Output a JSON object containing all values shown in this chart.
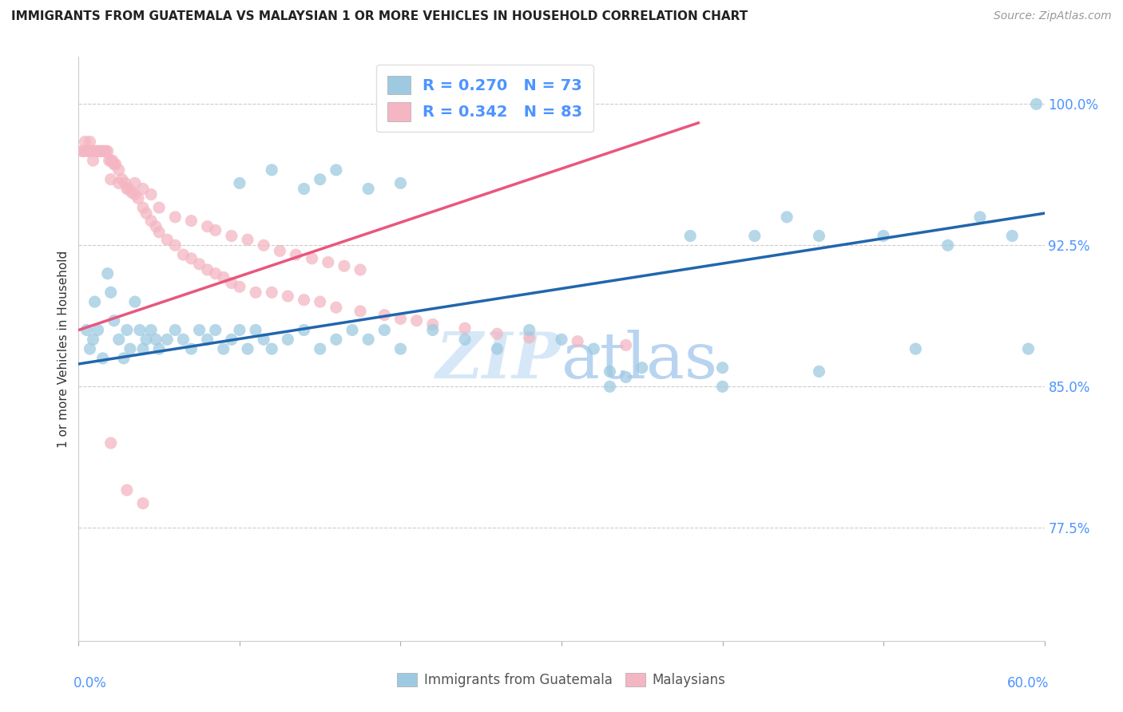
{
  "title": "IMMIGRANTS FROM GUATEMALA VS MALAYSIAN 1 OR MORE VEHICLES IN HOUSEHOLD CORRELATION CHART",
  "source": "Source: ZipAtlas.com",
  "ylabel_label": "1 or more Vehicles in Household",
  "R_blue": 0.27,
  "N_blue": 73,
  "R_pink": 0.342,
  "N_pink": 83,
  "blue_color": "#9ecae1",
  "pink_color": "#f4b6c2",
  "line_blue": "#2166ac",
  "line_pink": "#e8577c",
  "axis_tick_color": "#4d94ff",
  "watermark_color": "#d6e8f7",
  "xmin": 0.0,
  "xmax": 0.6,
  "ymin": 0.715,
  "ymax": 1.025,
  "blue_line_x0": 0.0,
  "blue_line_x1": 0.6,
  "blue_line_y0": 0.862,
  "blue_line_y1": 0.942,
  "pink_line_x0": 0.0,
  "pink_line_x1": 0.385,
  "pink_line_y0": 0.88,
  "pink_line_y1": 0.99,
  "blue_x": [
    0.005,
    0.007,
    0.009,
    0.01,
    0.012,
    0.015,
    0.018,
    0.02,
    0.022,
    0.025,
    0.028,
    0.03,
    0.032,
    0.035,
    0.038,
    0.04,
    0.042,
    0.045,
    0.048,
    0.05,
    0.055,
    0.06,
    0.065,
    0.07,
    0.075,
    0.08,
    0.085,
    0.09,
    0.095,
    0.1,
    0.105,
    0.11,
    0.115,
    0.12,
    0.13,
    0.14,
    0.15,
    0.16,
    0.17,
    0.18,
    0.19,
    0.2,
    0.22,
    0.24,
    0.26,
    0.28,
    0.3,
    0.32,
    0.33,
    0.33,
    0.34,
    0.35,
    0.38,
    0.4,
    0.4,
    0.42,
    0.44,
    0.46,
    0.46,
    0.5,
    0.52,
    0.54,
    0.56,
    0.58,
    0.59,
    0.595,
    0.1,
    0.12,
    0.14,
    0.15,
    0.16,
    0.18,
    0.2
  ],
  "blue_y": [
    0.88,
    0.87,
    0.875,
    0.895,
    0.88,
    0.865,
    0.91,
    0.9,
    0.885,
    0.875,
    0.865,
    0.88,
    0.87,
    0.895,
    0.88,
    0.87,
    0.875,
    0.88,
    0.875,
    0.87,
    0.875,
    0.88,
    0.875,
    0.87,
    0.88,
    0.875,
    0.88,
    0.87,
    0.875,
    0.88,
    0.87,
    0.88,
    0.875,
    0.87,
    0.875,
    0.88,
    0.87,
    0.875,
    0.88,
    0.875,
    0.88,
    0.87,
    0.88,
    0.875,
    0.87,
    0.88,
    0.875,
    0.87,
    0.85,
    0.858,
    0.855,
    0.86,
    0.93,
    0.85,
    0.86,
    0.93,
    0.94,
    0.93,
    0.858,
    0.93,
    0.87,
    0.925,
    0.94,
    0.93,
    0.87,
    1.0,
    0.958,
    0.965,
    0.955,
    0.96,
    0.965,
    0.955,
    0.958
  ],
  "pink_x": [
    0.002,
    0.003,
    0.004,
    0.005,
    0.006,
    0.007,
    0.008,
    0.009,
    0.01,
    0.011,
    0.012,
    0.013,
    0.014,
    0.015,
    0.016,
    0.017,
    0.018,
    0.019,
    0.02,
    0.021,
    0.022,
    0.023,
    0.025,
    0.027,
    0.029,
    0.031,
    0.033,
    0.035,
    0.037,
    0.04,
    0.042,
    0.045,
    0.048,
    0.05,
    0.055,
    0.06,
    0.065,
    0.07,
    0.075,
    0.08,
    0.085,
    0.09,
    0.095,
    0.1,
    0.11,
    0.12,
    0.13,
    0.14,
    0.15,
    0.16,
    0.175,
    0.19,
    0.2,
    0.21,
    0.22,
    0.24,
    0.26,
    0.28,
    0.31,
    0.34,
    0.02,
    0.025,
    0.03,
    0.035,
    0.04,
    0.045,
    0.05,
    0.06,
    0.07,
    0.08,
    0.085,
    0.095,
    0.105,
    0.115,
    0.125,
    0.135,
    0.145,
    0.155,
    0.165,
    0.175,
    0.02,
    0.03,
    0.04
  ],
  "pink_y": [
    0.975,
    0.975,
    0.98,
    0.975,
    0.975,
    0.98,
    0.975,
    0.97,
    0.975,
    0.975,
    0.975,
    0.975,
    0.975,
    0.975,
    0.975,
    0.975,
    0.975,
    0.97,
    0.97,
    0.97,
    0.968,
    0.968,
    0.965,
    0.96,
    0.958,
    0.955,
    0.953,
    0.952,
    0.95,
    0.945,
    0.942,
    0.938,
    0.935,
    0.932,
    0.928,
    0.925,
    0.92,
    0.918,
    0.915,
    0.912,
    0.91,
    0.908,
    0.905,
    0.903,
    0.9,
    0.9,
    0.898,
    0.896,
    0.895,
    0.892,
    0.89,
    0.888,
    0.886,
    0.885,
    0.883,
    0.881,
    0.878,
    0.876,
    0.874,
    0.872,
    0.96,
    0.958,
    0.955,
    0.958,
    0.955,
    0.952,
    0.945,
    0.94,
    0.938,
    0.935,
    0.933,
    0.93,
    0.928,
    0.925,
    0.922,
    0.92,
    0.918,
    0.916,
    0.914,
    0.912,
    0.82,
    0.795,
    0.788
  ]
}
